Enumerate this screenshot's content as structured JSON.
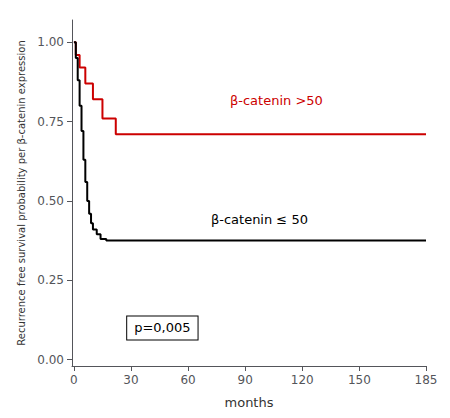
{
  "chart_data": {
    "type": "step",
    "xlabel": "months",
    "ylabel": "Recurrence free survival probability per β-catenin expression",
    "series": [
      {
        "name": "β-catenin >50",
        "color": "#cc0000",
        "x": [
          0,
          1,
          3,
          6,
          10,
          15,
          22,
          185
        ],
        "values": [
          1.0,
          0.96,
          0.92,
          0.87,
          0.82,
          0.76,
          0.71,
          0.71
        ],
        "label_x": 82,
        "label_y": 0.815
      },
      {
        "name": "β-catenin ≤ 50",
        "color": "#000000",
        "x": [
          0,
          1,
          2,
          3,
          4,
          5,
          6,
          7,
          8,
          9,
          10,
          12,
          14,
          17,
          185
        ],
        "values": [
          1.0,
          0.95,
          0.88,
          0.8,
          0.72,
          0.63,
          0.56,
          0.5,
          0.46,
          0.43,
          0.41,
          0.395,
          0.38,
          0.375,
          0.375
        ],
        "label_x": 72,
        "label_y": 0.44
      }
    ],
    "p_value": {
      "text": "p=0,005",
      "x": 28,
      "y": 0.1
    },
    "xlim": [
      -1,
      185
    ],
    "xticks": [
      0,
      30,
      60,
      90,
      120,
      150,
      185
    ],
    "ylim": [
      -0.02,
      1.07
    ],
    "yticks": [
      {
        "value": 0.0,
        "label": "0.00"
      },
      {
        "value": 0.25,
        "label": "0.25"
      },
      {
        "value": 0.5,
        "label": "0.50"
      },
      {
        "value": 0.75,
        "label": "0.75"
      },
      {
        "value": 1.0,
        "label": "1.00"
      }
    ],
    "grid": false
  }
}
